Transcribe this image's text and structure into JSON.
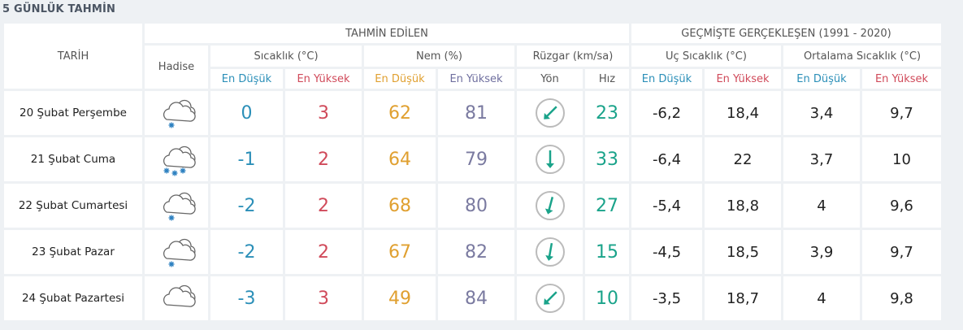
{
  "title": "5 GÜNLÜK TAHMİN",
  "headers": {
    "tarih": "TARİH",
    "hadise": "Hadise",
    "forecast_group": "TAHMİN EDİLEN",
    "history_group": "GEÇMİŞTE GERÇEKLEŞEN (1991 - 2020)",
    "temp": "Sıcaklık (°C)",
    "humidity": "Nem (%)",
    "wind": "Rüzgar (km/sa)",
    "extreme_temp": "Uç Sıcaklık (°C)",
    "avg_temp": "Ortalama Sıcaklık (°C)",
    "min": "En Düşük",
    "max": "En Yüksek",
    "dir": "Yön",
    "speed": "Hız"
  },
  "colors": {
    "temp_min": "#2b8fb8",
    "temp_max": "#d04a5a",
    "hum_min": "#e0a030",
    "hum_max": "#7a7aa0",
    "wind_speed": "#1aa38a"
  },
  "rows": [
    {
      "date": "20 Şubat Perşembe",
      "icon": "snow-light-icon",
      "temp_min": "0",
      "temp_max": "3",
      "hum_min": "62",
      "hum_max": "81",
      "wind_dir_deg": 225,
      "wind_speed": "23",
      "ext_min": "-6,2",
      "ext_max": "18,4",
      "avg_min": "3,4",
      "avg_max": "9,7"
    },
    {
      "date": "21 Şubat Cuma",
      "icon": "snow-heavy-icon",
      "temp_min": "-1",
      "temp_max": "2",
      "hum_min": "64",
      "hum_max": "79",
      "wind_dir_deg": 180,
      "wind_speed": "33",
      "ext_min": "-6,4",
      "ext_max": "22",
      "avg_min": "3,7",
      "avg_max": "10"
    },
    {
      "date": "22 Şubat Cumartesi",
      "icon": "snow-light-icon",
      "temp_min": "-2",
      "temp_max": "2",
      "hum_min": "68",
      "hum_max": "80",
      "wind_dir_deg": 195,
      "wind_speed": "27",
      "ext_min": "-5,4",
      "ext_max": "18,8",
      "avg_min": "4",
      "avg_max": "9,6"
    },
    {
      "date": "23 Şubat Pazar",
      "icon": "snow-light-icon",
      "temp_min": "-2",
      "temp_max": "2",
      "hum_min": "67",
      "hum_max": "82",
      "wind_dir_deg": 190,
      "wind_speed": "15",
      "ext_min": "-4,5",
      "ext_max": "18,5",
      "avg_min": "3,9",
      "avg_max": "9,7"
    },
    {
      "date": "24 Şubat Pazartesi",
      "icon": "cloud-icon",
      "temp_min": "-3",
      "temp_max": "3",
      "hum_min": "49",
      "hum_max": "84",
      "wind_dir_deg": 225,
      "wind_speed": "10",
      "ext_min": "-3,5",
      "ext_max": "18,7",
      "avg_min": "4",
      "avg_max": "9,8"
    }
  ]
}
